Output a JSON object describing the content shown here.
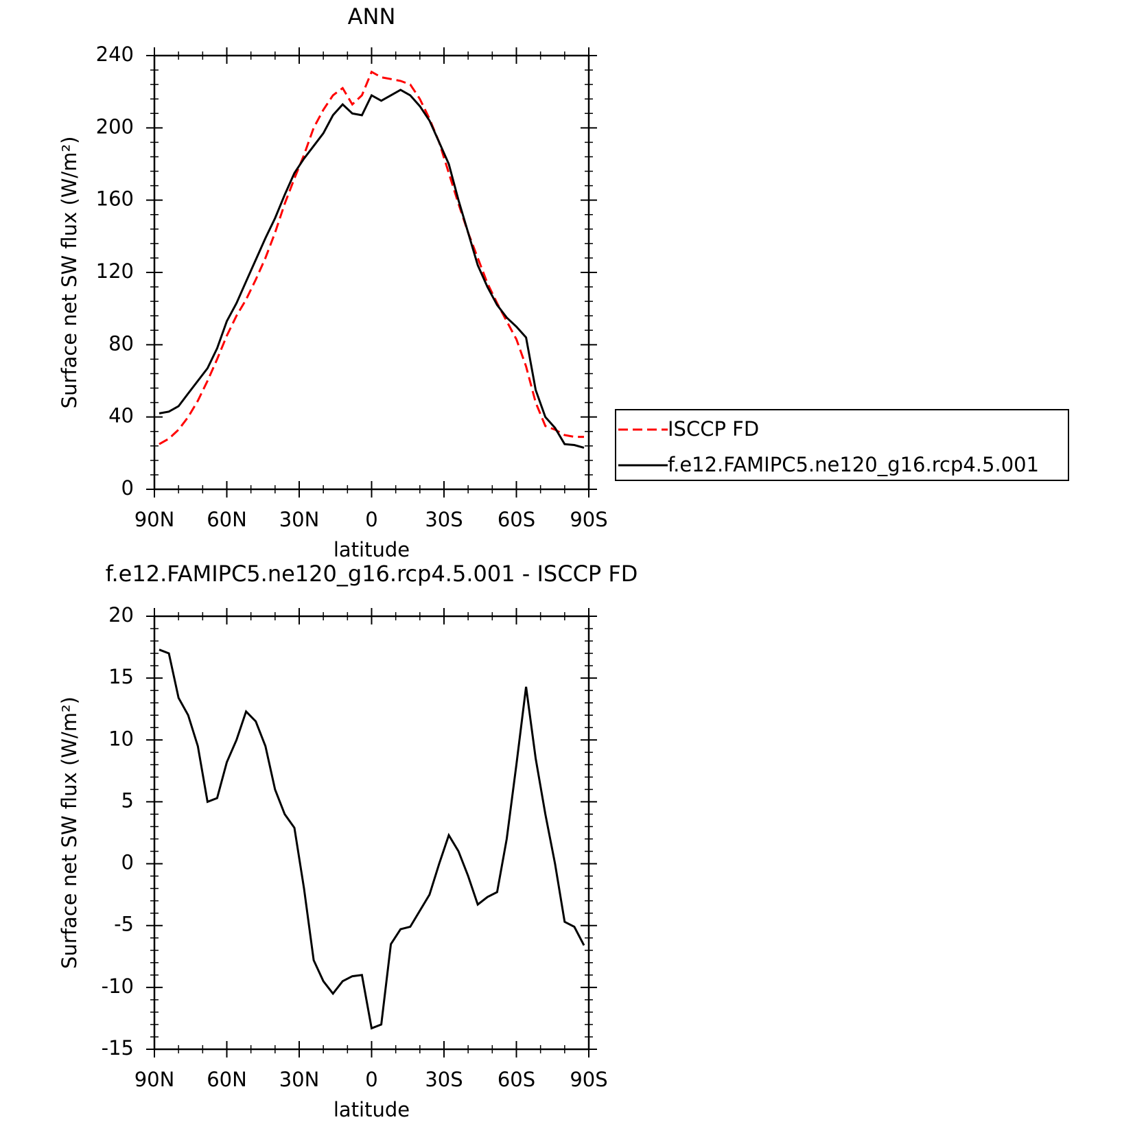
{
  "chart_data": [
    {
      "type": "line",
      "title": "ANN",
      "xlabel": "latitude",
      "ylabel": "Surface net SW flux (W/m²)",
      "x": [
        88,
        84,
        80,
        76,
        72,
        68,
        64,
        60,
        56,
        52,
        48,
        44,
        40,
        36,
        32,
        28,
        24,
        20,
        16,
        12,
        8,
        4,
        0,
        -4,
        -8,
        -12,
        -16,
        -20,
        -24,
        -28,
        -32,
        -36,
        -40,
        -44,
        -48,
        -52,
        -56,
        -60,
        -64,
        -68,
        -72,
        -76,
        -80,
        -84,
        -88
      ],
      "series": [
        {
          "name": "ISCCP FD",
          "color": "#ff0000",
          "linestyle": "dashed",
          "values": [
            25,
            28,
            33,
            40,
            49,
            60,
            72,
            85,
            96,
            105,
            116,
            128,
            142,
            158,
            172,
            185,
            200,
            210,
            218,
            222,
            213,
            218,
            231,
            228,
            227,
            226,
            224,
            216,
            205,
            192,
            175,
            158,
            142,
            128,
            114,
            103,
            93,
            83,
            68,
            48,
            35,
            33,
            30,
            29,
            29
          ]
        },
        {
          "name": "f.e12.FAMIPC5.ne120_g16.rcp4.5.001",
          "color": "#000000",
          "linestyle": "solid",
          "values": [
            42,
            43,
            46,
            53,
            60,
            67,
            78,
            93,
            103,
            115,
            127,
            139,
            150,
            163,
            175,
            183,
            190,
            197,
            207,
            213,
            208,
            207,
            218,
            215,
            218,
            221,
            218,
            212,
            204,
            192,
            180,
            160,
            142,
            124,
            112,
            102,
            95,
            90,
            84,
            55,
            40,
            34,
            25,
            24.5,
            23
          ]
        }
      ],
      "xlim": [
        90,
        -90
      ],
      "xticks": [
        {
          "value": 90,
          "label": "90N"
        },
        {
          "value": 60,
          "label": "60N"
        },
        {
          "value": 30,
          "label": "30N"
        },
        0,
        {
          "value": -30,
          "label": "30S"
        },
        {
          "value": -60,
          "label": "60S"
        },
        {
          "value": -90,
          "label": "90S"
        }
      ],
      "ylim": [
        0,
        240
      ],
      "yticks": [
        0,
        40,
        80,
        120,
        160,
        200,
        240
      ],
      "legend": true
    },
    {
      "type": "line",
      "title": "f.e12.FAMIPC5.ne120_g16.rcp4.5.001 - ISCCP FD",
      "xlabel": "latitude",
      "ylabel": "Surface net SW flux (W/m²)",
      "x": [
        88,
        84,
        80,
        76,
        72,
        68,
        64,
        60,
        56,
        52,
        48,
        44,
        40,
        36,
        32,
        28,
        24,
        20,
        16,
        12,
        8,
        4,
        0,
        -4,
        -8,
        -12,
        -16,
        -20,
        -24,
        -28,
        -32,
        -36,
        -40,
        -44,
        -48,
        -52,
        -56,
        -60,
        -64,
        -68,
        -72,
        -76,
        -80,
        -84,
        -88
      ],
      "values": [
        17.3,
        17,
        13.4,
        12,
        9.5,
        5,
        5.3,
        8.2,
        10,
        12.3,
        11.5,
        9.5,
        6,
        4,
        2.9,
        -2,
        -7.8,
        -9.5,
        -10.5,
        -9.5,
        -9.1,
        -9,
        -13.3,
        -13,
        -6.5,
        -5.3,
        -5.1,
        -3.8,
        -2.5,
        0,
        2.3,
        1,
        -1,
        -3.3,
        -2.7,
        -2.3,
        2,
        8,
        14.3,
        8.5,
        4,
        0,
        -4.7,
        -5.1,
        -6.6
      ],
      "color": "#000000",
      "xlim": [
        90,
        -90
      ],
      "xticks": [
        {
          "value": 90,
          "label": "90N"
        },
        {
          "value": 60,
          "label": "60N"
        },
        {
          "value": 30,
          "label": "30N"
        },
        0,
        {
          "value": -30,
          "label": "30S"
        },
        {
          "value": -60,
          "label": "60S"
        },
        {
          "value": -90,
          "label": "90S"
        }
      ],
      "ylim": [
        -15,
        20
      ],
      "yticks": [
        -15,
        -10,
        -5,
        0,
        5,
        10,
        15,
        20
      ],
      "legend": false
    }
  ]
}
